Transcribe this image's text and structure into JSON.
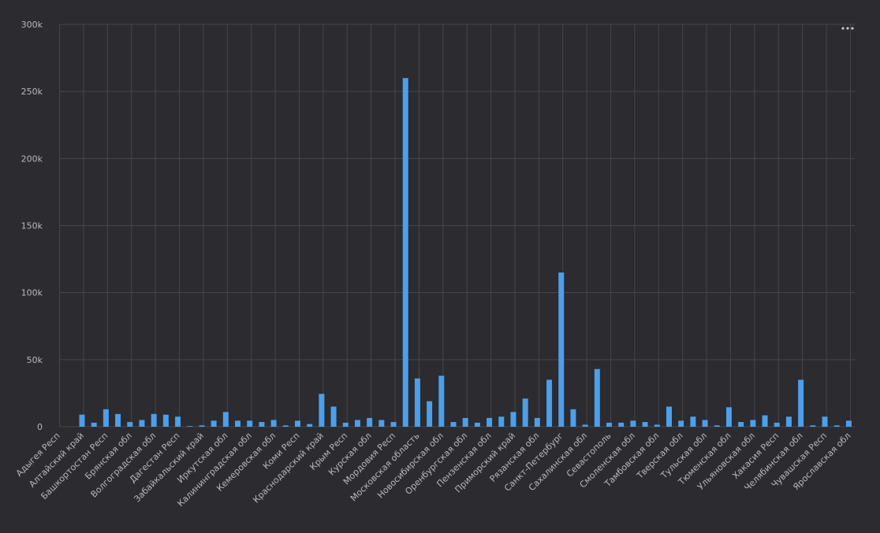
{
  "chart_data": {
    "type": "bar",
    "categories": [
      "Адыгея Респ",
      null,
      "Алтайский край",
      null,
      "Башкортостан Респ",
      null,
      "Брянская обл",
      null,
      "Волгоградская обл",
      null,
      "Дагестан Респ",
      null,
      "Забайкальский край",
      null,
      "Иркутская обл",
      null,
      "Калининградская обл",
      null,
      "Кемеровская обл",
      null,
      "Коми Респ",
      null,
      "Краснодарский край",
      null,
      "Крым Респ",
      null,
      "Курская обл",
      null,
      "Мордовия Респ",
      null,
      "Московская область",
      null,
      "Новосибирская обл",
      null,
      "Оренбургская обл",
      null,
      "Пензенская обл",
      null,
      "Приморский край",
      null,
      "Рязанская обл",
      null,
      "Санкт-Петербург",
      null,
      "Сахалинская обл",
      null,
      "Севастополь",
      null,
      "Смоленская обл",
      null,
      "Тамбовская обл",
      null,
      "Тверская обл",
      null,
      "Тульская обл",
      null,
      "Тюменская обл",
      null,
      "Ульяновская обл",
      null,
      "Хакасия Респ",
      null,
      "Челябинская обл",
      null,
      "Чувашская Респ",
      null,
      "Ярославская обл"
    ],
    "values": [
      0,
      0,
      9000,
      3000,
      13000,
      9500,
      3500,
      5000,
      9500,
      9000,
      7500,
      500,
      1000,
      4500,
      11000,
      4500,
      4500,
      3500,
      5000,
      1000,
      4500,
      2000,
      24500,
      15000,
      3000,
      5000,
      6500,
      5000,
      3500,
      260000,
      36000,
      19000,
      38000,
      3500,
      6500,
      3000,
      6500,
      7500,
      11000,
      21000,
      6500,
      35000,
      115000,
      13000,
      1500,
      43000,
      3000,
      3000,
      4500,
      3500,
      1500,
      15000,
      4500,
      7500,
      5000,
      1000,
      14500,
      3500,
      5000,
      8500,
      3000,
      7500,
      35000,
      1000,
      7500,
      1000,
      4500
    ],
    "color": "#4c9fea",
    "ylim": [
      0,
      300000
    ],
    "yticks": [
      0,
      {
        "value": 50000,
        "label": "50k"
      },
      {
        "value": 100000,
        "label": "100k"
      },
      {
        "value": 150000,
        "label": "150k"
      },
      {
        "value": 200000,
        "label": "200k"
      },
      {
        "value": 250000,
        "label": "250k"
      },
      {
        "value": 300000,
        "label": "300k"
      }
    ],
    "grid": true
  }
}
